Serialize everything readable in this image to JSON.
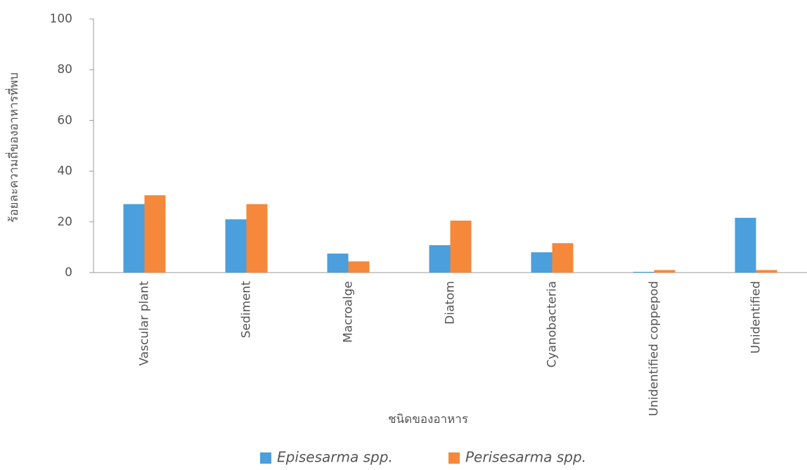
{
  "chart_data": {
    "type": "bar",
    "x_label": "ชนิดของอาหาร",
    "y_label": "ร้อยละความถี่ของอาหารที่พบ",
    "categories": [
      "Vascular plant",
      "Sediment",
      "Macroalge",
      "Diatom",
      "Cyanobacteria",
      "Unidentified coppepod",
      "Unidentified"
    ],
    "series": [
      {
        "name": "Episesarma spp.",
        "color": "#4a9fdc",
        "values": [
          27,
          21,
          7.5,
          10.8,
          8,
          0.3,
          21.6
        ]
      },
      {
        "name": "Perisesarma spp.",
        "color": "#f5883a",
        "values": [
          30.5,
          27,
          4.4,
          20.5,
          11.6,
          1,
          1
        ]
      }
    ],
    "ylim": [
      0,
      100
    ],
    "yticks": [
      0,
      20,
      40,
      60,
      80,
      100
    ],
    "legend": "bottom"
  }
}
